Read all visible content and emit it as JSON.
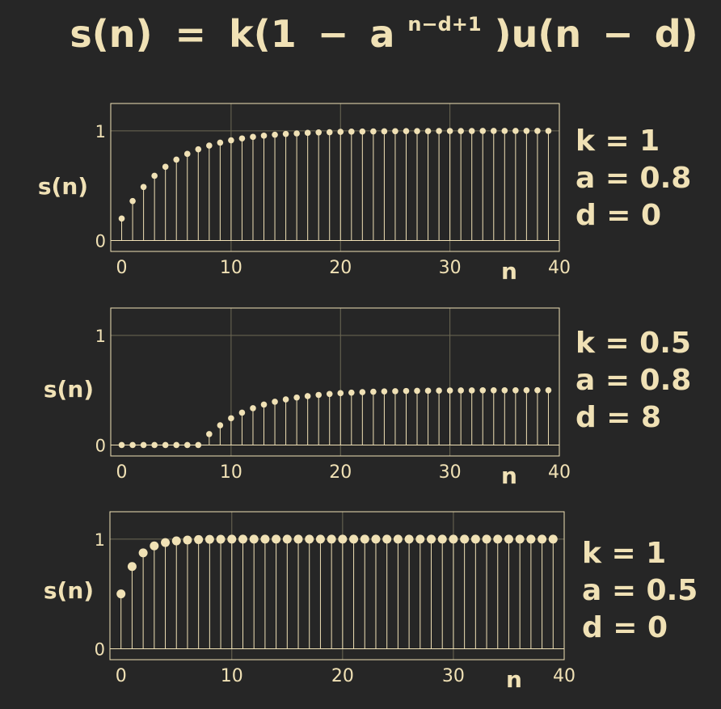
{
  "title": {
    "s_n": "s(n)",
    "eq": "=",
    "pre": "k(1",
    "minus": "−",
    "base": "a",
    "exp": "n−d+1",
    "post": ")u(n",
    "minus2": "−",
    "end": "d)"
  },
  "colors": {
    "background": "#262626",
    "foreground": "#F0E1B5",
    "grid": "#6E6955"
  },
  "chart_data": [
    {
      "type": "stem",
      "xlabel": "n",
      "ylabel": "s(n)",
      "xlim": [
        -1,
        40
      ],
      "ylim": [
        -0.1,
        1.25
      ],
      "xticks": [
        "0",
        "10",
        "20",
        "30",
        "40"
      ],
      "yticks": [
        "0",
        "1"
      ],
      "params": [
        "k = 1",
        "a = 0.8",
        "d = 0"
      ],
      "k": 1,
      "a": 0.8,
      "d": 0,
      "x": [
        0,
        1,
        2,
        3,
        4,
        5,
        6,
        7,
        8,
        9,
        10,
        11,
        12,
        13,
        14,
        15,
        16,
        17,
        18,
        19,
        20,
        21,
        22,
        23,
        24,
        25,
        26,
        27,
        28,
        29,
        30,
        31,
        32,
        33,
        34,
        35,
        36,
        37,
        38,
        39
      ],
      "values": [
        0.2,
        0.36,
        0.488,
        0.59,
        0.672,
        0.738,
        0.79,
        0.832,
        0.866,
        0.893,
        0.914,
        0.931,
        0.945,
        0.956,
        0.965,
        0.972,
        0.977,
        0.982,
        0.986,
        0.988,
        0.991,
        0.993,
        0.994,
        0.995,
        0.996,
        0.997,
        0.998,
        0.998,
        0.998,
        0.999,
        0.999,
        0.999,
        0.999,
        1,
        1,
        1,
        1,
        1,
        1,
        1
      ]
    },
    {
      "type": "stem",
      "xlabel": "n",
      "ylabel": "s(n)",
      "xlim": [
        -1,
        40
      ],
      "ylim": [
        -0.1,
        1.25
      ],
      "xticks": [
        "0",
        "10",
        "20",
        "30",
        "40"
      ],
      "yticks": [
        "0",
        "1"
      ],
      "params": [
        "k = 0.5",
        "a = 0.8",
        "d = 8"
      ],
      "k": 0.5,
      "a": 0.8,
      "d": 8,
      "x": [
        0,
        1,
        2,
        3,
        4,
        5,
        6,
        7,
        8,
        9,
        10,
        11,
        12,
        13,
        14,
        15,
        16,
        17,
        18,
        19,
        20,
        21,
        22,
        23,
        24,
        25,
        26,
        27,
        28,
        29,
        30,
        31,
        32,
        33,
        34,
        35,
        36,
        37,
        38,
        39
      ],
      "values": [
        0,
        0,
        0,
        0,
        0,
        0,
        0,
        0,
        0.1,
        0.18,
        0.244,
        0.295,
        0.336,
        0.369,
        0.395,
        0.416,
        0.433,
        0.446,
        0.457,
        0.466,
        0.473,
        0.478,
        0.482,
        0.486,
        0.489,
        0.491,
        0.493,
        0.494,
        0.495,
        0.496,
        0.497,
        0.498,
        0.498,
        0.499,
        0.499,
        0.499,
        0.499,
        0.5,
        0.5,
        0.5
      ]
    },
    {
      "type": "stem",
      "xlabel": "n",
      "ylabel": "s(n)",
      "xlim": [
        -1,
        40
      ],
      "ylim": [
        -0.1,
        1.25
      ],
      "xticks": [
        "0",
        "10",
        "20",
        "30",
        "40"
      ],
      "yticks": [
        "0",
        "1"
      ],
      "params": [
        "k = 1",
        "a = 0.5",
        "d = 0"
      ],
      "k": 1,
      "a": 0.5,
      "d": 0,
      "x": [
        0,
        1,
        2,
        3,
        4,
        5,
        6,
        7,
        8,
        9,
        10,
        11,
        12,
        13,
        14,
        15,
        16,
        17,
        18,
        19,
        20,
        21,
        22,
        23,
        24,
        25,
        26,
        27,
        28,
        29,
        30,
        31,
        32,
        33,
        34,
        35,
        36,
        37,
        38,
        39
      ],
      "values": [
        0.5,
        0.75,
        0.875,
        0.938,
        0.969,
        0.984,
        0.992,
        0.996,
        0.998,
        0.999,
        1,
        1,
        1,
        1,
        1,
        1,
        1,
        1,
        1,
        1,
        1,
        1,
        1,
        1,
        1,
        1,
        1,
        1,
        1,
        1,
        1,
        1,
        1,
        1,
        1,
        1,
        1,
        1,
        1,
        1
      ]
    }
  ]
}
